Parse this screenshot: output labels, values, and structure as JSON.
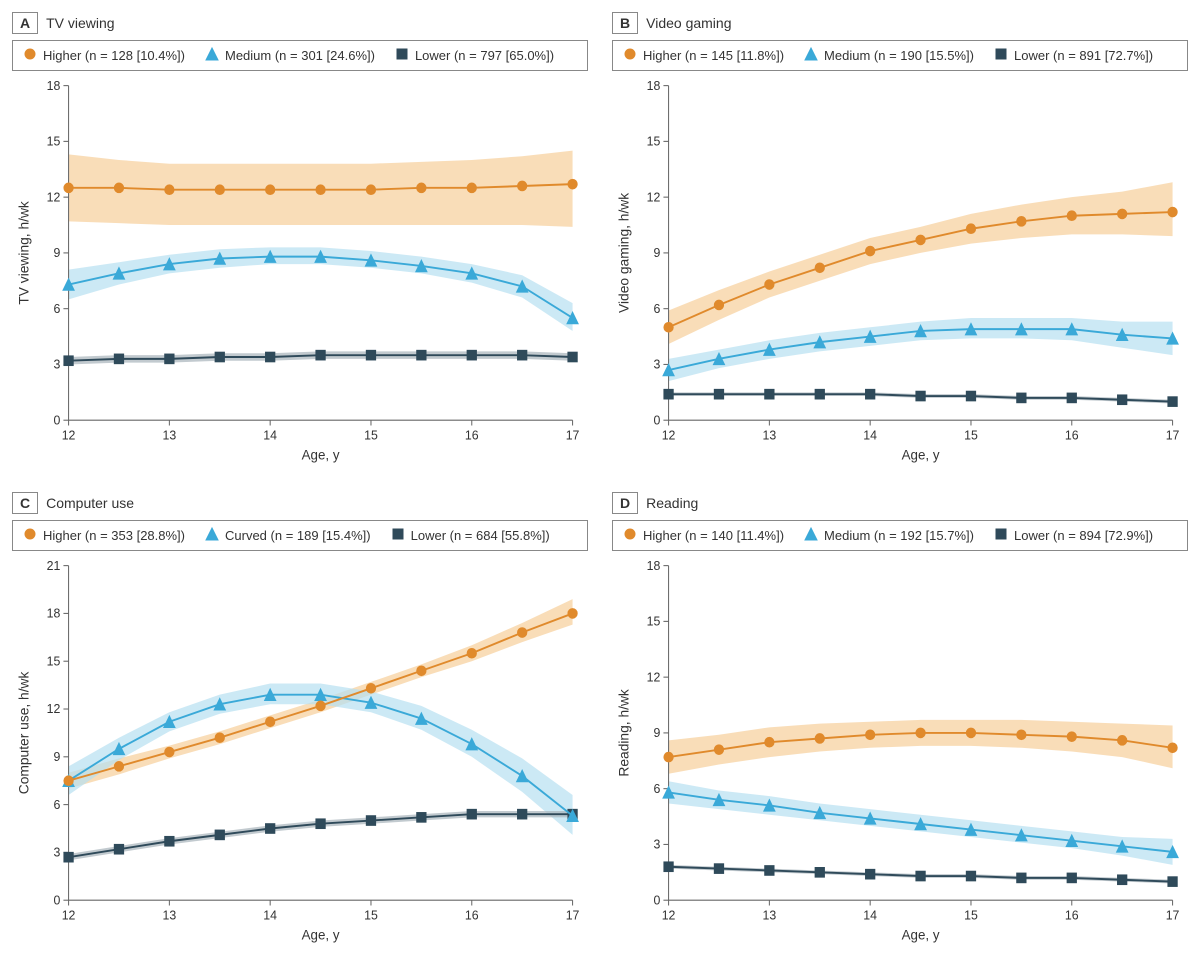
{
  "global": {
    "x_label": "Age, y",
    "x_values": [
      12,
      12.5,
      13,
      13.5,
      14,
      14.5,
      15,
      15.5,
      16,
      16.5,
      17
    ],
    "x_ticks": [
      12,
      13,
      14,
      15,
      16,
      17
    ],
    "colors": {
      "higher_line": "#e08a2c",
      "higher_band": "#f6cf9a",
      "medium_line": "#3aa9d8",
      "medium_band": "#b7e0f1",
      "lower_line": "#2f4a5a",
      "lower_band": "#a8b4bb",
      "axis": "#666666",
      "text": "#333333",
      "bg": "#ffffff",
      "panel_border": "#888888"
    },
    "fonts": {
      "title_pt": 14,
      "legend_pt": 13,
      "axis_label_pt": 13,
      "tick_pt": 12
    },
    "marker_size": 4.5,
    "line_width": 1.8
  },
  "panels": {
    "A": {
      "letter": "A",
      "title": "TV viewing",
      "y_label": "TV viewing, h/wk",
      "y_lim": [
        0,
        18
      ],
      "y_ticks": [
        0,
        3,
        6,
        9,
        12,
        15,
        18
      ],
      "legend": [
        {
          "key": "higher",
          "marker": "circle",
          "label": "Higher (n = 128 [10.4%])"
        },
        {
          "key": "medium",
          "marker": "triangle",
          "label": "Medium (n = 301 [24.6%])"
        },
        {
          "key": "lower",
          "marker": "square",
          "label": "Lower (n = 797 [65.0%])"
        }
      ],
      "series": {
        "higher": {
          "y": [
            12.5,
            12.5,
            12.4,
            12.4,
            12.4,
            12.4,
            12.4,
            12.5,
            12.5,
            12.6,
            12.7
          ],
          "lo": [
            10.7,
            10.6,
            10.5,
            10.5,
            10.5,
            10.5,
            10.5,
            10.5,
            10.5,
            10.5,
            10.4
          ],
          "hi": [
            14.3,
            14.0,
            13.8,
            13.8,
            13.8,
            13.8,
            13.8,
            13.9,
            14.0,
            14.2,
            14.5
          ]
        },
        "medium": {
          "y": [
            7.3,
            7.9,
            8.4,
            8.7,
            8.8,
            8.8,
            8.6,
            8.3,
            7.9,
            7.2,
            5.5
          ],
          "lo": [
            6.5,
            7.3,
            7.9,
            8.2,
            8.4,
            8.4,
            8.2,
            7.9,
            7.4,
            6.6,
            4.8
          ],
          "hi": [
            8.1,
            8.5,
            8.9,
            9.2,
            9.3,
            9.3,
            9.1,
            8.8,
            8.4,
            7.8,
            6.3
          ]
        },
        "lower": {
          "y": [
            3.2,
            3.3,
            3.3,
            3.4,
            3.4,
            3.5,
            3.5,
            3.5,
            3.5,
            3.5,
            3.4
          ],
          "lo": [
            3.0,
            3.1,
            3.1,
            3.2,
            3.2,
            3.3,
            3.3,
            3.3,
            3.3,
            3.3,
            3.2
          ],
          "hi": [
            3.4,
            3.5,
            3.5,
            3.6,
            3.6,
            3.7,
            3.7,
            3.7,
            3.7,
            3.7,
            3.6
          ]
        }
      }
    },
    "B": {
      "letter": "B",
      "title": "Video gaming",
      "y_label": "Video gaming, h/wk",
      "y_lim": [
        0,
        18
      ],
      "y_ticks": [
        0,
        3,
        6,
        9,
        12,
        15,
        18
      ],
      "legend": [
        {
          "key": "higher",
          "marker": "circle",
          "label": "Higher (n = 145 [11.8%])"
        },
        {
          "key": "medium",
          "marker": "triangle",
          "label": "Medium (n = 190 [15.5%])"
        },
        {
          "key": "lower",
          "marker": "square",
          "label": "Lower (n = 891 [72.7%])"
        }
      ],
      "series": {
        "higher": {
          "y": [
            5.0,
            6.2,
            7.3,
            8.2,
            9.1,
            9.7,
            10.3,
            10.7,
            11.0,
            11.1,
            11.2
          ],
          "lo": [
            4.1,
            5.4,
            6.6,
            7.5,
            8.4,
            9.0,
            9.5,
            9.8,
            10.0,
            10.0,
            9.9
          ],
          "hi": [
            5.9,
            7.0,
            8.0,
            8.9,
            9.8,
            10.4,
            11.1,
            11.6,
            12.0,
            12.3,
            12.8
          ]
        },
        "medium": {
          "y": [
            2.7,
            3.3,
            3.8,
            4.2,
            4.5,
            4.8,
            4.9,
            4.9,
            4.9,
            4.6,
            4.4
          ],
          "lo": [
            2.1,
            2.8,
            3.3,
            3.7,
            4.0,
            4.3,
            4.4,
            4.4,
            4.3,
            3.9,
            3.5
          ],
          "hi": [
            3.3,
            3.8,
            4.3,
            4.7,
            5.0,
            5.3,
            5.5,
            5.5,
            5.5,
            5.3,
            5.3
          ]
        },
        "lower": {
          "y": [
            1.4,
            1.4,
            1.4,
            1.4,
            1.4,
            1.3,
            1.3,
            1.2,
            1.2,
            1.1,
            1.0
          ],
          "lo": [
            1.3,
            1.3,
            1.3,
            1.3,
            1.3,
            1.2,
            1.2,
            1.1,
            1.1,
            1.0,
            0.9
          ],
          "hi": [
            1.5,
            1.5,
            1.5,
            1.5,
            1.5,
            1.4,
            1.4,
            1.3,
            1.3,
            1.2,
            1.1
          ]
        }
      }
    },
    "C": {
      "letter": "C",
      "title": "Computer use",
      "y_label": "Computer use, h/wk",
      "y_lim": [
        0,
        21
      ],
      "y_ticks": [
        0,
        3,
        6,
        9,
        12,
        15,
        18,
        21
      ],
      "legend": [
        {
          "key": "higher",
          "marker": "circle",
          "label": "Higher (n = 353 [28.8%])"
        },
        {
          "key": "medium",
          "marker": "triangle",
          "label": "Curved (n = 189 [15.4%])"
        },
        {
          "key": "lower",
          "marker": "square",
          "label": "Lower (n = 684 [55.8%])"
        }
      ],
      "series": {
        "higher": {
          "y": [
            7.5,
            8.4,
            9.3,
            10.2,
            11.2,
            12.2,
            13.3,
            14.4,
            15.5,
            16.8,
            18.0
          ],
          "lo": [
            7.0,
            7.9,
            8.9,
            9.8,
            10.8,
            11.8,
            12.9,
            14.0,
            15.0,
            16.2,
            17.3
          ],
          "hi": [
            8.0,
            8.9,
            9.7,
            10.6,
            11.6,
            12.6,
            13.7,
            14.8,
            16.0,
            17.4,
            18.9
          ]
        },
        "medium": {
          "y": [
            7.5,
            9.5,
            11.2,
            12.3,
            12.9,
            12.9,
            12.4,
            11.4,
            9.8,
            7.8,
            5.3
          ],
          "lo": [
            6.6,
            8.8,
            10.6,
            11.7,
            12.3,
            12.3,
            11.8,
            10.7,
            9.0,
            6.8,
            4.1
          ],
          "hi": [
            8.4,
            10.2,
            11.8,
            12.9,
            13.6,
            13.6,
            13.1,
            12.2,
            10.7,
            8.9,
            6.6
          ]
        },
        "lower": {
          "y": [
            2.7,
            3.2,
            3.7,
            4.1,
            4.5,
            4.8,
            5.0,
            5.2,
            5.4,
            5.4,
            5.4
          ],
          "lo": [
            2.5,
            3.0,
            3.5,
            3.9,
            4.3,
            4.6,
            4.8,
            5.0,
            5.2,
            5.2,
            5.2
          ],
          "hi": [
            2.9,
            3.4,
            3.9,
            4.3,
            4.7,
            5.0,
            5.2,
            5.4,
            5.6,
            5.6,
            5.6
          ]
        }
      }
    },
    "D": {
      "letter": "D",
      "title": "Reading",
      "y_label": "Reading, h/wk",
      "y_lim": [
        0,
        18
      ],
      "y_ticks": [
        0,
        3,
        6,
        9,
        12,
        15,
        18
      ],
      "legend": [
        {
          "key": "higher",
          "marker": "circle",
          "label": "Higher (n = 140 [11.4%])"
        },
        {
          "key": "medium",
          "marker": "triangle",
          "label": "Medium (n = 192 [15.7%])"
        },
        {
          "key": "lower",
          "marker": "square",
          "label": "Lower (n = 894 [72.9%])"
        }
      ],
      "series": {
        "higher": {
          "y": [
            7.7,
            8.1,
            8.5,
            8.7,
            8.9,
            9.0,
            9.0,
            8.9,
            8.8,
            8.6,
            8.2
          ],
          "lo": [
            6.8,
            7.3,
            7.7,
            8.0,
            8.2,
            8.3,
            8.3,
            8.2,
            8.0,
            7.7,
            7.1
          ],
          "hi": [
            8.6,
            8.9,
            9.3,
            9.5,
            9.6,
            9.7,
            9.7,
            9.7,
            9.6,
            9.5,
            9.4
          ]
        },
        "medium": {
          "y": [
            5.8,
            5.4,
            5.1,
            4.7,
            4.4,
            4.1,
            3.8,
            3.5,
            3.2,
            2.9,
            2.6
          ],
          "lo": [
            5.2,
            4.9,
            4.6,
            4.3,
            4.0,
            3.7,
            3.4,
            3.1,
            2.8,
            2.4,
            1.9
          ],
          "hi": [
            6.4,
            5.9,
            5.6,
            5.2,
            4.9,
            4.6,
            4.3,
            4.0,
            3.7,
            3.4,
            3.3
          ]
        },
        "lower": {
          "y": [
            1.8,
            1.7,
            1.6,
            1.5,
            1.4,
            1.3,
            1.3,
            1.2,
            1.2,
            1.1,
            1.0
          ],
          "lo": [
            1.7,
            1.6,
            1.5,
            1.4,
            1.3,
            1.2,
            1.2,
            1.1,
            1.1,
            1.0,
            0.9
          ],
          "hi": [
            1.9,
            1.8,
            1.7,
            1.6,
            1.5,
            1.4,
            1.4,
            1.3,
            1.3,
            1.2,
            1.1
          ]
        }
      }
    }
  }
}
